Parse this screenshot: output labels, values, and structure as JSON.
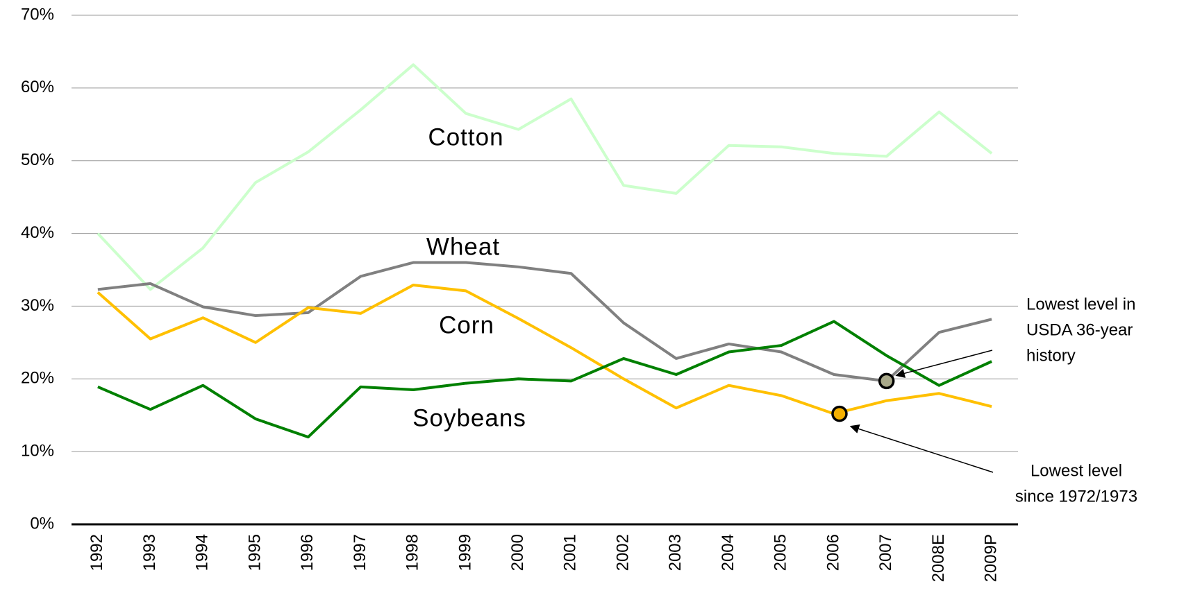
{
  "chart_data": {
    "type": "line",
    "categories": [
      "1992",
      "1993",
      "1994",
      "1995",
      "1996",
      "1997",
      "1998",
      "1999",
      "2000",
      "2001",
      "2002",
      "2003",
      "2004",
      "2005",
      "2006",
      "2007",
      "2008E",
      "2009P"
    ],
    "series": [
      {
        "name": "Cotton",
        "color": "#ccffcc",
        "label_color": "#3fe0a4",
        "values": [
          40,
          32.3,
          38,
          47,
          51.2,
          57,
          63.2,
          56.5,
          54.3,
          58.5,
          46.6,
          45.5,
          52.1,
          51.9,
          51,
          50.6,
          56.7,
          51
        ]
      },
      {
        "name": "Wheat",
        "color": "#808080",
        "label_color": "#a6a6a6",
        "values": [
          32.3,
          33.1,
          29.9,
          28.7,
          29.1,
          34.1,
          36,
          36,
          35.4,
          34.5,
          27.7,
          22.8,
          24.8,
          23.7,
          20.6,
          19.7,
          26.4,
          28.2
        ]
      },
      {
        "name": "Corn",
        "color": "#ffc000",
        "label_color": "#f0b400",
        "values": [
          31.9,
          25.5,
          28.4,
          25,
          29.8,
          29,
          32.9,
          32.1,
          28.3,
          24.3,
          20,
          16,
          19.1,
          17.7,
          15.2,
          17,
          18,
          16.2
        ]
      },
      {
        "name": "Soybeans",
        "color": "#008000",
        "label_color": "#007a00",
        "values": [
          18.9,
          15.8,
          19.1,
          14.5,
          12,
          18.9,
          18.5,
          19.4,
          20,
          19.7,
          22.8,
          20.6,
          23.7,
          24.6,
          27.9,
          23.2,
          19.1,
          22.4
        ]
      }
    ],
    "annotations": [
      {
        "lines": [
          "Lowest level in",
          "USDA 36-year",
          "history"
        ]
      },
      {
        "lines": [
          "Lowest level",
          "since 1972/1973"
        ]
      }
    ],
    "ylim": [
      0,
      70
    ],
    "yticks": [
      {
        "value": 0,
        "label": "0%"
      },
      {
        "value": 10,
        "label": "10%"
      },
      {
        "value": 20,
        "label": "20%"
      },
      {
        "value": 30,
        "label": "30%"
      },
      {
        "value": 40,
        "label": "40%"
      },
      {
        "value": 50,
        "label": "50%"
      },
      {
        "value": 60,
        "label": "60%"
      },
      {
        "value": 70,
        "label": "70%"
      }
    ],
    "grid": true
  }
}
